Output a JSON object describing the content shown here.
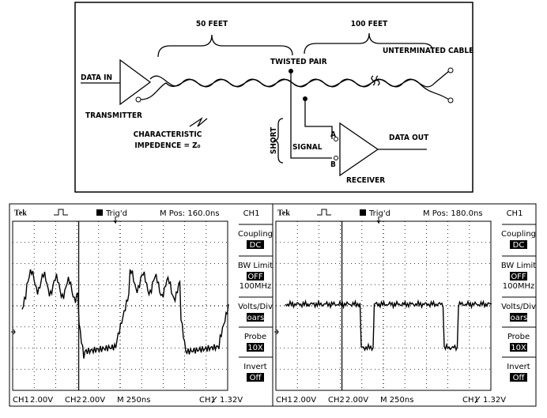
{
  "diagram": {
    "length_a": "50 FEET",
    "length_b": "100 FEET",
    "data_in": "DATA IN",
    "twisted_pair": "TWISTED PAIR",
    "unterminated": "UNTERMINATED CABLE",
    "transmitter": "TRANSMITTER",
    "char_1": "CHARACTERISTIC",
    "char_2": "IMPEDENCE = Z₀",
    "short": "SHORT",
    "signal": "SIGNAL",
    "pin_a": "A",
    "pin_b": "B",
    "data_out": "DATA OUT",
    "receiver": "RECEIVER"
  },
  "scopes": [
    {
      "brand": "Tek",
      "trigger": "Trig'd",
      "position": "M Pos: 160.0ns",
      "menu_title": "CH1",
      "menu": [
        {
          "label": "Coupling",
          "setting": "DC"
        },
        {
          "label": "BW Limit",
          "setting": "OFF",
          "extra": "100MHz"
        },
        {
          "label": "Volts/Div",
          "setting": "Coarse"
        },
        {
          "label": "Probe",
          "setting": "10X"
        },
        {
          "label": "Invert",
          "setting": "Off"
        }
      ],
      "footer": [
        "CH1",
        "2.00V",
        "CH2",
        "2.00V",
        "M 250ns",
        "CH1",
        "1.32V"
      ]
    },
    {
      "brand": "Tek",
      "trigger": "Trig'd",
      "position": "M Pos: 180.0ns",
      "menu_title": "CH1",
      "menu": [
        {
          "label": "Coupling",
          "setting": "DC"
        },
        {
          "label": "BW Limit",
          "setting": "OFF",
          "extra": "100MHz"
        },
        {
          "label": "Volts/Div",
          "setting": "Coarse"
        },
        {
          "label": "Probe",
          "setting": "10X"
        },
        {
          "label": "Invert",
          "setting": "Off"
        }
      ],
      "footer": [
        "CH1",
        "2.00V",
        "CH2",
        "2.00V",
        "M 250ns",
        "CH1",
        "1.32V"
      ]
    }
  ]
}
